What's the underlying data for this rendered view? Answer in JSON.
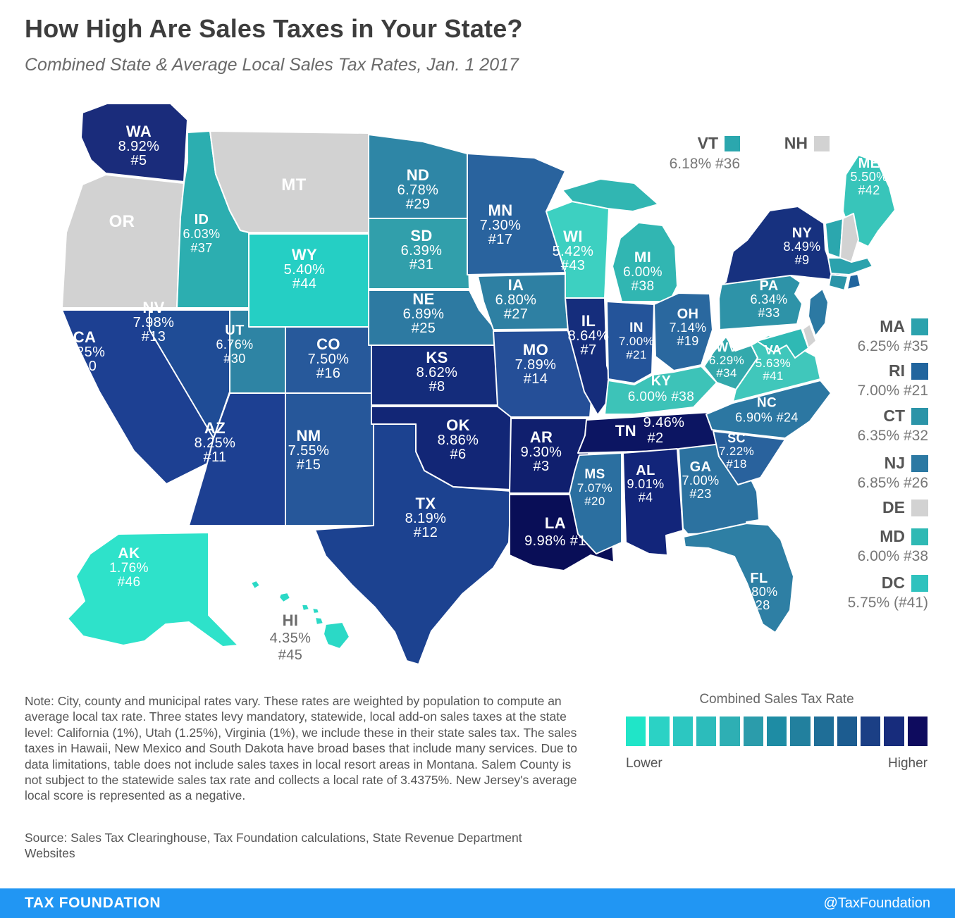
{
  "header": {
    "title": "How High Are Sales Taxes in Your State?",
    "subtitle": "Combined State & Average Local Sales Tax Rates, Jan. 1 2017"
  },
  "chart_data": {
    "type": "choropleth",
    "title": "Combined State & Average Local Sales Tax Rates, Jan. 1 2017",
    "value_unit": "percent",
    "no_data_color": "#D2D2D2",
    "states": [
      {
        "abbr": "WA",
        "rate": 8.92,
        "rank": 5,
        "color": "#1A2C7B",
        "label_lines": [
          "WA",
          "8.92%",
          "#5"
        ]
      },
      {
        "abbr": "OR",
        "rate": null,
        "rank": null,
        "color": "#D2D2D2",
        "label_lines": [
          "OR"
        ]
      },
      {
        "abbr": "CA",
        "rate": 8.25,
        "rank": 10,
        "color": "#1D4092",
        "label_lines": [
          "CA",
          "8.25%",
          "#10"
        ]
      },
      {
        "abbr": "NV",
        "rate": 7.98,
        "rank": 13,
        "color": "#1F4C96",
        "label_lines": [
          "NV",
          "7.98%",
          "#13"
        ]
      },
      {
        "abbr": "ID",
        "rate": 6.03,
        "rank": 37,
        "color": "#2CAEB0",
        "label_lines": [
          "ID",
          "6.03%",
          "#37"
        ]
      },
      {
        "abbr": "MT",
        "rate": null,
        "rank": null,
        "color": "#D2D2D2",
        "label_lines": [
          "MT"
        ]
      },
      {
        "abbr": "WY",
        "rate": 5.4,
        "rank": 44,
        "color": "#25CFC4",
        "label_lines": [
          "WY",
          "5.40%",
          "#44"
        ]
      },
      {
        "abbr": "UT",
        "rate": 6.76,
        "rank": 30,
        "color": "#2E84A4",
        "label_lines": [
          "UT",
          "6.76%",
          "#30"
        ]
      },
      {
        "abbr": "CO",
        "rate": 7.5,
        "rank": 16,
        "color": "#27599B",
        "label_lines": [
          "CO",
          "7.50%",
          "#16"
        ]
      },
      {
        "abbr": "AZ",
        "rate": 8.25,
        "rank": 11,
        "color": "#1D4092",
        "label_lines": [
          "AZ",
          "8.25%",
          "#11"
        ]
      },
      {
        "abbr": "NM",
        "rate": 7.55,
        "rank": 15,
        "color": "#26579A",
        "label_lines": [
          "NM",
          "7.55%",
          "#15"
        ]
      },
      {
        "abbr": "ND",
        "rate": 6.78,
        "rank": 29,
        "color": "#2E86A6",
        "label_lines": [
          "ND",
          "6.78%",
          "#29"
        ]
      },
      {
        "abbr": "SD",
        "rate": 6.39,
        "rank": 31,
        "color": "#319FAB",
        "label_lines": [
          "SD",
          "6.39%",
          "#31"
        ]
      },
      {
        "abbr": "NE",
        "rate": 6.89,
        "rank": 25,
        "color": "#2D7AA2",
        "label_lines": [
          "NE",
          "6.89%",
          "#25"
        ]
      },
      {
        "abbr": "KS",
        "rate": 8.62,
        "rank": 8,
        "color": "#142C7B",
        "label_lines": [
          "KS",
          "8.62%",
          "#8"
        ]
      },
      {
        "abbr": "OK",
        "rate": 8.86,
        "rank": 6,
        "color": "#122676",
        "label_lines": [
          "OK",
          "8.86%",
          "#6"
        ]
      },
      {
        "abbr": "TX",
        "rate": 8.19,
        "rank": 12,
        "color": "#1C4290",
        "label_lines": [
          "TX",
          "8.19%",
          "#12"
        ]
      },
      {
        "abbr": "MN",
        "rate": 7.3,
        "rank": 17,
        "color": "#29639E",
        "label_lines": [
          "MN",
          "7.30%",
          "#17"
        ]
      },
      {
        "abbr": "IA",
        "rate": 6.8,
        "rank": 27,
        "color": "#2E80A3",
        "label_lines": [
          "IA",
          "6.80%",
          "#27"
        ]
      },
      {
        "abbr": "MO",
        "rate": 7.89,
        "rank": 14,
        "color": "#254F98",
        "label_lines": [
          "MO",
          "7.89%",
          "#14"
        ]
      },
      {
        "abbr": "AR",
        "rate": 9.3,
        "rank": 3,
        "color": "#101F6E",
        "label_lines": [
          "AR",
          "9.30%",
          "#3"
        ]
      },
      {
        "abbr": "LA",
        "rate": 9.98,
        "rank": 1,
        "color": "#090E57",
        "label_lines": [
          "LA",
          "9.98% #1"
        ]
      },
      {
        "abbr": "WI",
        "rate": 5.42,
        "rank": 43,
        "color": "#3DD0C1",
        "label_lines": [
          "WI",
          "5.42%",
          "#43"
        ]
      },
      {
        "abbr": "IL",
        "rate": 8.64,
        "rank": 7,
        "color": "#152D7C",
        "label_lines": [
          "IL",
          "8.64%",
          "#7"
        ]
      },
      {
        "abbr": "MI",
        "rate": 6.0,
        "rank": 38,
        "color": "#31B6B2",
        "label_lines": [
          "MI",
          "6.00%",
          "#38"
        ]
      },
      {
        "abbr": "IN",
        "rate": 7.0,
        "rank": 21,
        "color": "#24549A",
        "label_lines": [
          "IN",
          "7.00%",
          "#21"
        ]
      },
      {
        "abbr": "OH",
        "rate": 7.14,
        "rank": 19,
        "color": "#2A689F",
        "label_lines": [
          "OH",
          "7.14%",
          "#19"
        ]
      },
      {
        "abbr": "KY",
        "rate": 6.0,
        "rank": 38,
        "color": "#3DC3B8",
        "label_lines": [
          "KY",
          "6.00% #38"
        ]
      },
      {
        "abbr": "TN",
        "rate": 9.46,
        "rank": 2,
        "color": "#0C1562",
        "label_lines": [
          "TN",
          "9.46%",
          "#2"
        ]
      },
      {
        "abbr": "MS",
        "rate": 7.07,
        "rank": 20,
        "color": "#2B6FA0",
        "label_lines": [
          "MS",
          "7.07%",
          "#20"
        ]
      },
      {
        "abbr": "AL",
        "rate": 9.01,
        "rank": 4,
        "color": "#12257A",
        "label_lines": [
          "AL",
          "9.01%",
          "#4"
        ]
      },
      {
        "abbr": "GA",
        "rate": 7.0,
        "rank": 23,
        "color": "#2C72A0",
        "label_lines": [
          "GA",
          "7.00%",
          "#23"
        ]
      },
      {
        "abbr": "FL",
        "rate": 6.8,
        "rank": 28,
        "color": "#2E7FA4",
        "label_lines": [
          "FL",
          "6.80%",
          "#28"
        ]
      },
      {
        "abbr": "WV",
        "rate": 6.29,
        "rank": 34,
        "color": "#33A9AC",
        "label_lines": [
          "WV",
          "6.29%",
          "#34"
        ]
      },
      {
        "abbr": "VA",
        "rate": 5.63,
        "rank": 41,
        "color": "#40C7BB",
        "label_lines": [
          "VA",
          "5.63%",
          "#41"
        ]
      },
      {
        "abbr": "NC",
        "rate": 6.9,
        "rank": 24,
        "color": "#2C77A2",
        "label_lines": [
          "NC",
          "6.90% #24"
        ]
      },
      {
        "abbr": "SC",
        "rate": 7.22,
        "rank": 18,
        "color": "#29629D",
        "label_lines": [
          "SC",
          "7.22%",
          "#18"
        ]
      },
      {
        "abbr": "PA",
        "rate": 6.34,
        "rank": 33,
        "color": "#2E93A8",
        "label_lines": [
          "PA",
          "6.34%",
          "#33"
        ]
      },
      {
        "abbr": "NY",
        "rate": 8.49,
        "rank": 9,
        "color": "#17317F",
        "label_lines": [
          "NY",
          "8.49%",
          "#9"
        ]
      },
      {
        "abbr": "ME",
        "rate": 5.5,
        "rank": 42,
        "color": "#38C5BA",
        "label_lines": [
          "ME",
          "5.50%",
          "#42"
        ]
      },
      {
        "abbr": "VT",
        "rate": 6.18,
        "rank": 36,
        "color": "#2BA7AE",
        "label_lines": []
      },
      {
        "abbr": "NH",
        "rate": null,
        "rank": null,
        "color": "#D2D2D2",
        "label_lines": []
      },
      {
        "abbr": "MA",
        "rate": 6.25,
        "rank": 35,
        "color": "#2BA2AD",
        "label_lines": []
      },
      {
        "abbr": "CT",
        "rate": 6.35,
        "rank": 32,
        "color": "#2B94A8",
        "label_lines": []
      },
      {
        "abbr": "RI",
        "rate": 7.0,
        "rank": 21,
        "color": "#21659E",
        "label_lines": []
      },
      {
        "abbr": "NJ",
        "rate": 6.85,
        "rank": 26,
        "color": "#2C79A3",
        "label_lines": []
      },
      {
        "abbr": "DE",
        "rate": null,
        "rank": null,
        "color": "#D2D2D2",
        "label_lines": []
      },
      {
        "abbr": "MD",
        "rate": 6.0,
        "rank": 38,
        "color": "#2FB9B4",
        "label_lines": []
      },
      {
        "abbr": "AK",
        "rate": 1.76,
        "rank": 46,
        "color": "#2EE2CA",
        "label_lines": [
          "AK",
          "1.76%",
          "#46"
        ]
      },
      {
        "abbr": "HI",
        "rate": 4.35,
        "rank": 45,
        "color": "#2BD9C6",
        "label_lines": [
          "HI",
          "4.35%",
          "#45"
        ]
      },
      {
        "abbr": "DC",
        "rate": 5.75,
        "rank": 41,
        "color": "#2FC2BE",
        "label_lines": []
      }
    ]
  },
  "ne_legend": [
    {
      "abbr": "VT",
      "detail": "6.18% #36",
      "color": "#2BA7AE"
    },
    {
      "abbr": "NH",
      "detail": "",
      "color": "#D2D2D2"
    }
  ],
  "right_legend": [
    {
      "abbr": "MA",
      "detail": "6.25% #35",
      "color": "#2BA2AD"
    },
    {
      "abbr": "RI",
      "detail": "7.00% #21",
      "color": "#21659E"
    },
    {
      "abbr": "CT",
      "detail": "6.35% #32",
      "color": "#2B94A8"
    },
    {
      "abbr": "NJ",
      "detail": "6.85% #26",
      "color": "#2C79A3"
    },
    {
      "abbr": "DE",
      "detail": "",
      "color": "#D2D2D2"
    },
    {
      "abbr": "MD",
      "detail": "6.00% #38",
      "color": "#2FB9B4"
    },
    {
      "abbr": "DC",
      "detail": "5.75% (#41)",
      "color": "#2FC2BE"
    }
  ],
  "scale_legend": {
    "title": "Combined Sales Tax Rate",
    "lower": "Lower",
    "higher": "Higher",
    "colors": [
      "#20E5C8",
      "#2BD2C5",
      "#2CC7C1",
      "#2CBCBB",
      "#2EAFB4",
      "#2B9CAB",
      "#1E8CA4",
      "#22809E",
      "#1F6E97",
      "#1C5C90",
      "#1B3F85",
      "#172C7C",
      "#0E0B5E"
    ]
  },
  "note": "Note: City, county and municipal rates vary. These rates are weighted by population to compute an average local tax rate. Three states levy mandatory, statewide, local add-on sales taxes at the state level: California (1%), Utah (1.25%), Virginia (1%), we include these in their state sales tax. The sales taxes in Hawaii, New Mexico and South Dakota have broad bases that include many services. Due to data limitations, table does not include sales taxes in local resort areas in Montana. Salem County is not subject to the statewide sales tax rate and collects a local rate of 3.4375%. New Jersey's average local score is represented as a negative.",
  "source": "Source: Sales Tax Clearinghouse, Tax Foundation calculations, State Revenue Department Websites",
  "footer": {
    "brand": "TAX FOUNDATION",
    "handle": "@TaxFoundation",
    "color": "#2196F3"
  }
}
